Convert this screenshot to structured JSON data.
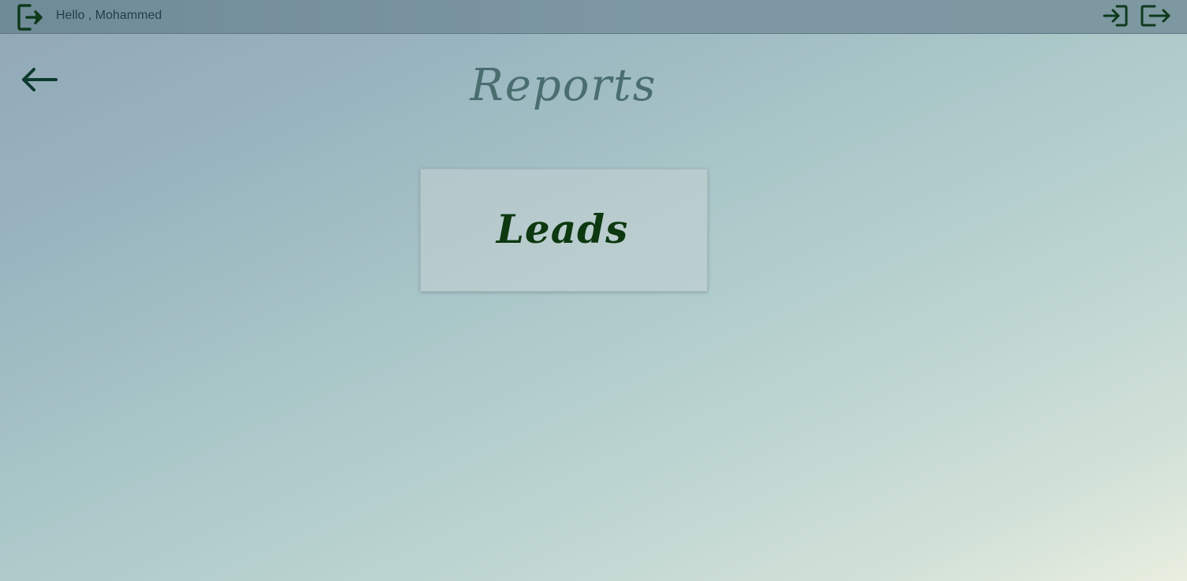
{
  "header": {
    "greeting": "Hello , Mohammed",
    "user_icon": "exit-door-icon",
    "login_icon": "login-icon",
    "logout_icon": "logout-icon"
  },
  "nav": {
    "back_icon": "arrow-left-icon"
  },
  "main": {
    "title": "Reports",
    "cards": [
      {
        "label": "Leads"
      }
    ]
  },
  "colors": {
    "icon": "#0d3a1c",
    "title": "#4a6e6f",
    "card_text": "#0d3810"
  }
}
